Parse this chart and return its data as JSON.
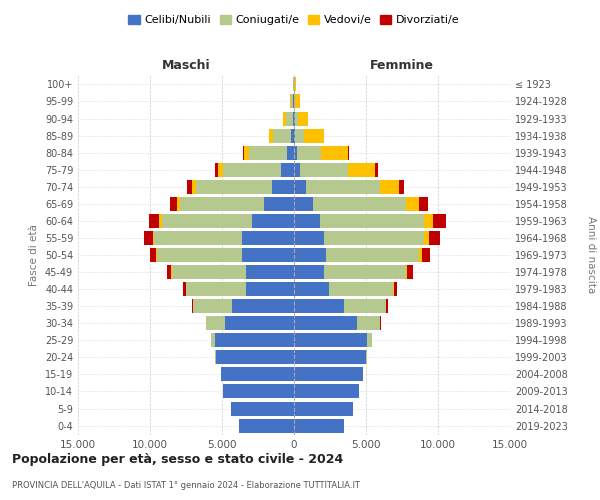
{
  "age_groups": [
    "0-4",
    "5-9",
    "10-14",
    "15-19",
    "20-24",
    "25-29",
    "30-34",
    "35-39",
    "40-44",
    "45-49",
    "50-54",
    "55-59",
    "60-64",
    "65-69",
    "70-74",
    "75-79",
    "80-84",
    "85-89",
    "90-94",
    "95-99",
    "100+"
  ],
  "birth_years": [
    "2019-2023",
    "2014-2018",
    "2009-2013",
    "2004-2008",
    "1999-2003",
    "1994-1998",
    "1989-1993",
    "1984-1988",
    "1979-1983",
    "1974-1978",
    "1969-1973",
    "1964-1968",
    "1959-1963",
    "1954-1958",
    "1949-1953",
    "1944-1948",
    "1939-1943",
    "1934-1938",
    "1929-1933",
    "1924-1928",
    "≤ 1923"
  ],
  "males": {
    "celibi": [
      3800,
      4400,
      4900,
      5100,
      5400,
      5500,
      4800,
      4300,
      3300,
      3300,
      3600,
      3600,
      2900,
      2100,
      1500,
      900,
      500,
      230,
      90,
      40,
      8
    ],
    "coniugati": [
      0,
      0,
      0,
      0,
      80,
      250,
      1300,
      2700,
      4200,
      5200,
      5900,
      6100,
      6300,
      5800,
      5300,
      4000,
      2600,
      1200,
      500,
      170,
      35
    ],
    "vedovi": [
      0,
      0,
      0,
      0,
      0,
      0,
      0,
      0,
      0,
      40,
      80,
      120,
      170,
      210,
      300,
      400,
      380,
      290,
      160,
      90,
      30
    ],
    "divorziati": [
      0,
      0,
      0,
      0,
      0,
      0,
      40,
      90,
      180,
      310,
      440,
      620,
      720,
      530,
      310,
      170,
      65,
      25,
      8,
      4,
      1
    ]
  },
  "females": {
    "celibi": [
      3500,
      4100,
      4500,
      4800,
      5000,
      5100,
      4400,
      3500,
      2400,
      2100,
      2200,
      2100,
      1800,
      1300,
      800,
      450,
      180,
      70,
      35,
      20,
      8
    ],
    "coniugati": [
      0,
      0,
      0,
      0,
      80,
      350,
      1600,
      2900,
      4500,
      5700,
      6500,
      6900,
      7200,
      6500,
      5200,
      3300,
      1700,
      650,
      230,
      75,
      15
    ],
    "vedovi": [
      0,
      0,
      0,
      0,
      0,
      0,
      0,
      0,
      40,
      80,
      180,
      350,
      620,
      900,
      1300,
      1900,
      1850,
      1350,
      700,
      340,
      85
    ],
    "divorziati": [
      0,
      0,
      0,
      0,
      0,
      0,
      40,
      130,
      220,
      400,
      540,
      820,
      920,
      640,
      360,
      170,
      65,
      25,
      8,
      4,
      1
    ]
  },
  "colors": {
    "celibi": "#4472c4",
    "coniugati": "#b5c98e",
    "vedovi": "#ffc000",
    "divorziati": "#c00000"
  },
  "legend_labels": [
    "Celibi/Nubili",
    "Coniugati/e",
    "Vedovi/e",
    "Divorziati/e"
  ],
  "title": "Popolazione per età, sesso e stato civile - 2024",
  "subtitle": "PROVINCIA DELL'AQUILA - Dati ISTAT 1° gennaio 2024 - Elaborazione TUTTITALIA.IT",
  "label_maschi": "Maschi",
  "label_femmine": "Femmine",
  "ylabel_left": "Fasce di età",
  "ylabel_right": "Anni di nascita",
  "xlim": 15000,
  "background_color": "#ffffff"
}
